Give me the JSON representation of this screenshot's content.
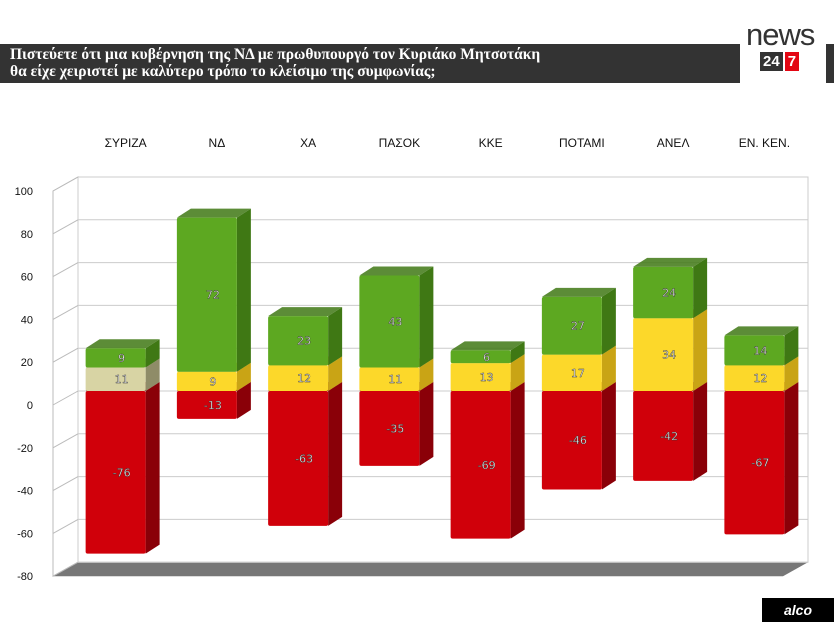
{
  "title_line1": "Πιστεύετε ότι μια κυβέρνηση της ΝΔ με πρωθυπουργό τον Κυριάκο Μητσοτάκη",
  "title_line2": "θα είχε χειριστεί με καλύτερο τρόπο το κλείσιμο της συμφωνίας;",
  "logo": {
    "word": "news",
    "num1": "24",
    "num2": "7"
  },
  "footer_logo": "alco",
  "chart_data": {
    "type": "bar",
    "stacked": true,
    "three_d": true,
    "categories": [
      "ΣΥΡΙΖΑ",
      "ΝΔ",
      "ΧΑ",
      "ΠΑΣΟΚ",
      "ΚΚΕ",
      "ΠΟΤΑΜΙ",
      "ΑΝΕΛ",
      "ΕΝ. ΚΕΝ."
    ],
    "ylim": [
      -80,
      100
    ],
    "yticks": [
      100,
      80,
      60,
      40,
      20,
      0,
      -20,
      -40,
      -60,
      -80
    ],
    "grid": true,
    "series": [
      {
        "values": [
          -76,
          -13,
          -63,
          -35,
          -69,
          -46,
          -42,
          -67
        ],
        "color": "#d0000a",
        "side": "#8a0008"
      },
      {
        "values": [
          11,
          9,
          12,
          11,
          13,
          17,
          34,
          12
        ],
        "color": "#fcd82a",
        "side": "#c9a415",
        "alt_color_first": "#d8d4a4"
      },
      {
        "values": [
          9,
          72,
          23,
          43,
          6,
          27,
          24,
          14
        ],
        "color": "#5da821",
        "side": "#3f7814"
      }
    ]
  }
}
